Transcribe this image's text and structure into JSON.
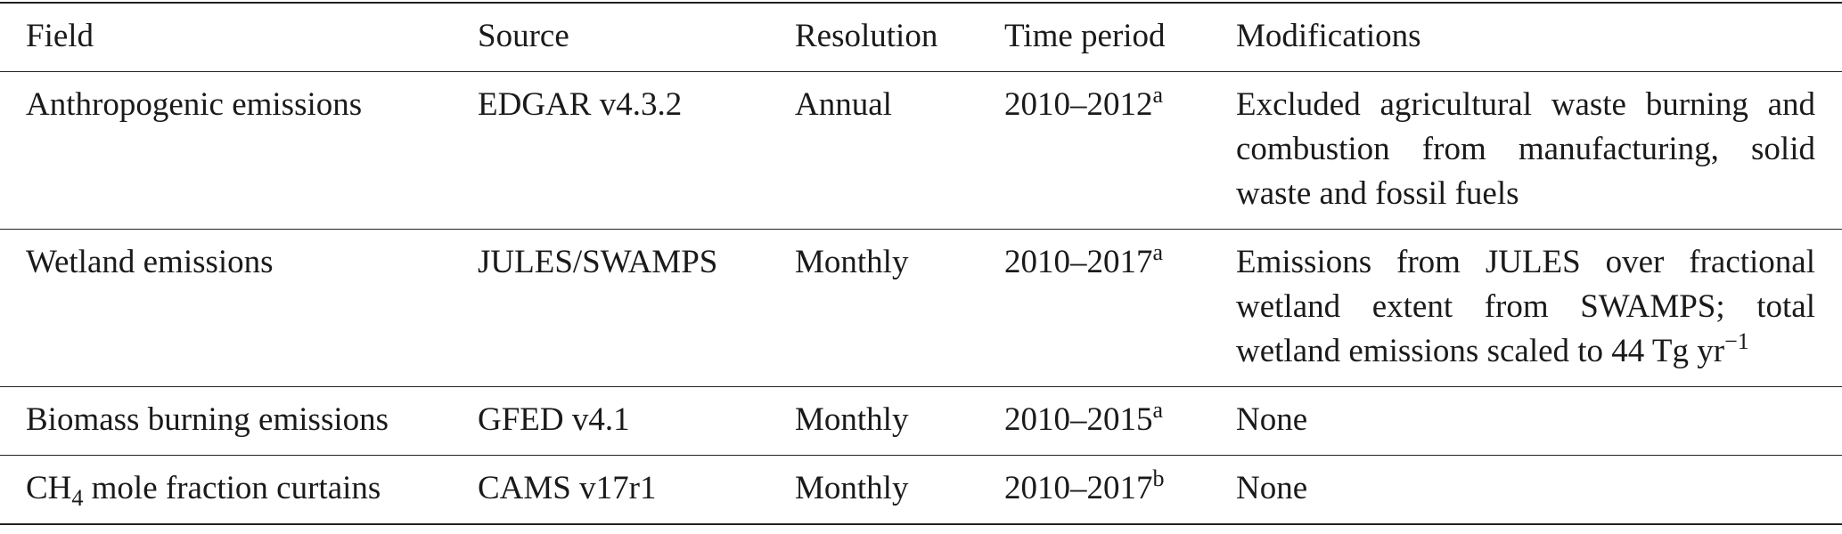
{
  "table": {
    "header": [
      "Field",
      "Source",
      "Resolution",
      "Time period",
      "Modifications"
    ],
    "rows": [
      {
        "field": "Anthropogenic emissions",
        "source": "EDGAR v4.3.2",
        "resolution": "Annual",
        "period": "2010–2012",
        "period_note": "a",
        "modifications": "Excluded agricultural waste burning and combustion from manufacturing, solid waste and fossil fuels"
      },
      {
        "field": "Wetland emissions",
        "source": "JULES/SWAMPS",
        "resolution": "Monthly",
        "period": "2010–2017",
        "period_note": "a",
        "modifications": "Emissions from JULES over fractional wetland extent from SWAMPS; total wetland emissions scaled to 44 Tg yr",
        "modifications_sup": "−1"
      },
      {
        "field": "Biomass burning emissions",
        "source": "GFED v4.1",
        "resolution": "Monthly",
        "period": "2010–2015",
        "period_note": "a",
        "modifications": "None"
      },
      {
        "field": "CH",
        "field_sub": "4",
        "field_rest": " mole fraction curtains",
        "source": "CAMS v17r1",
        "resolution": "Monthly",
        "period": "2010–2017",
        "period_note": "b",
        "modifications": "None"
      }
    ]
  }
}
